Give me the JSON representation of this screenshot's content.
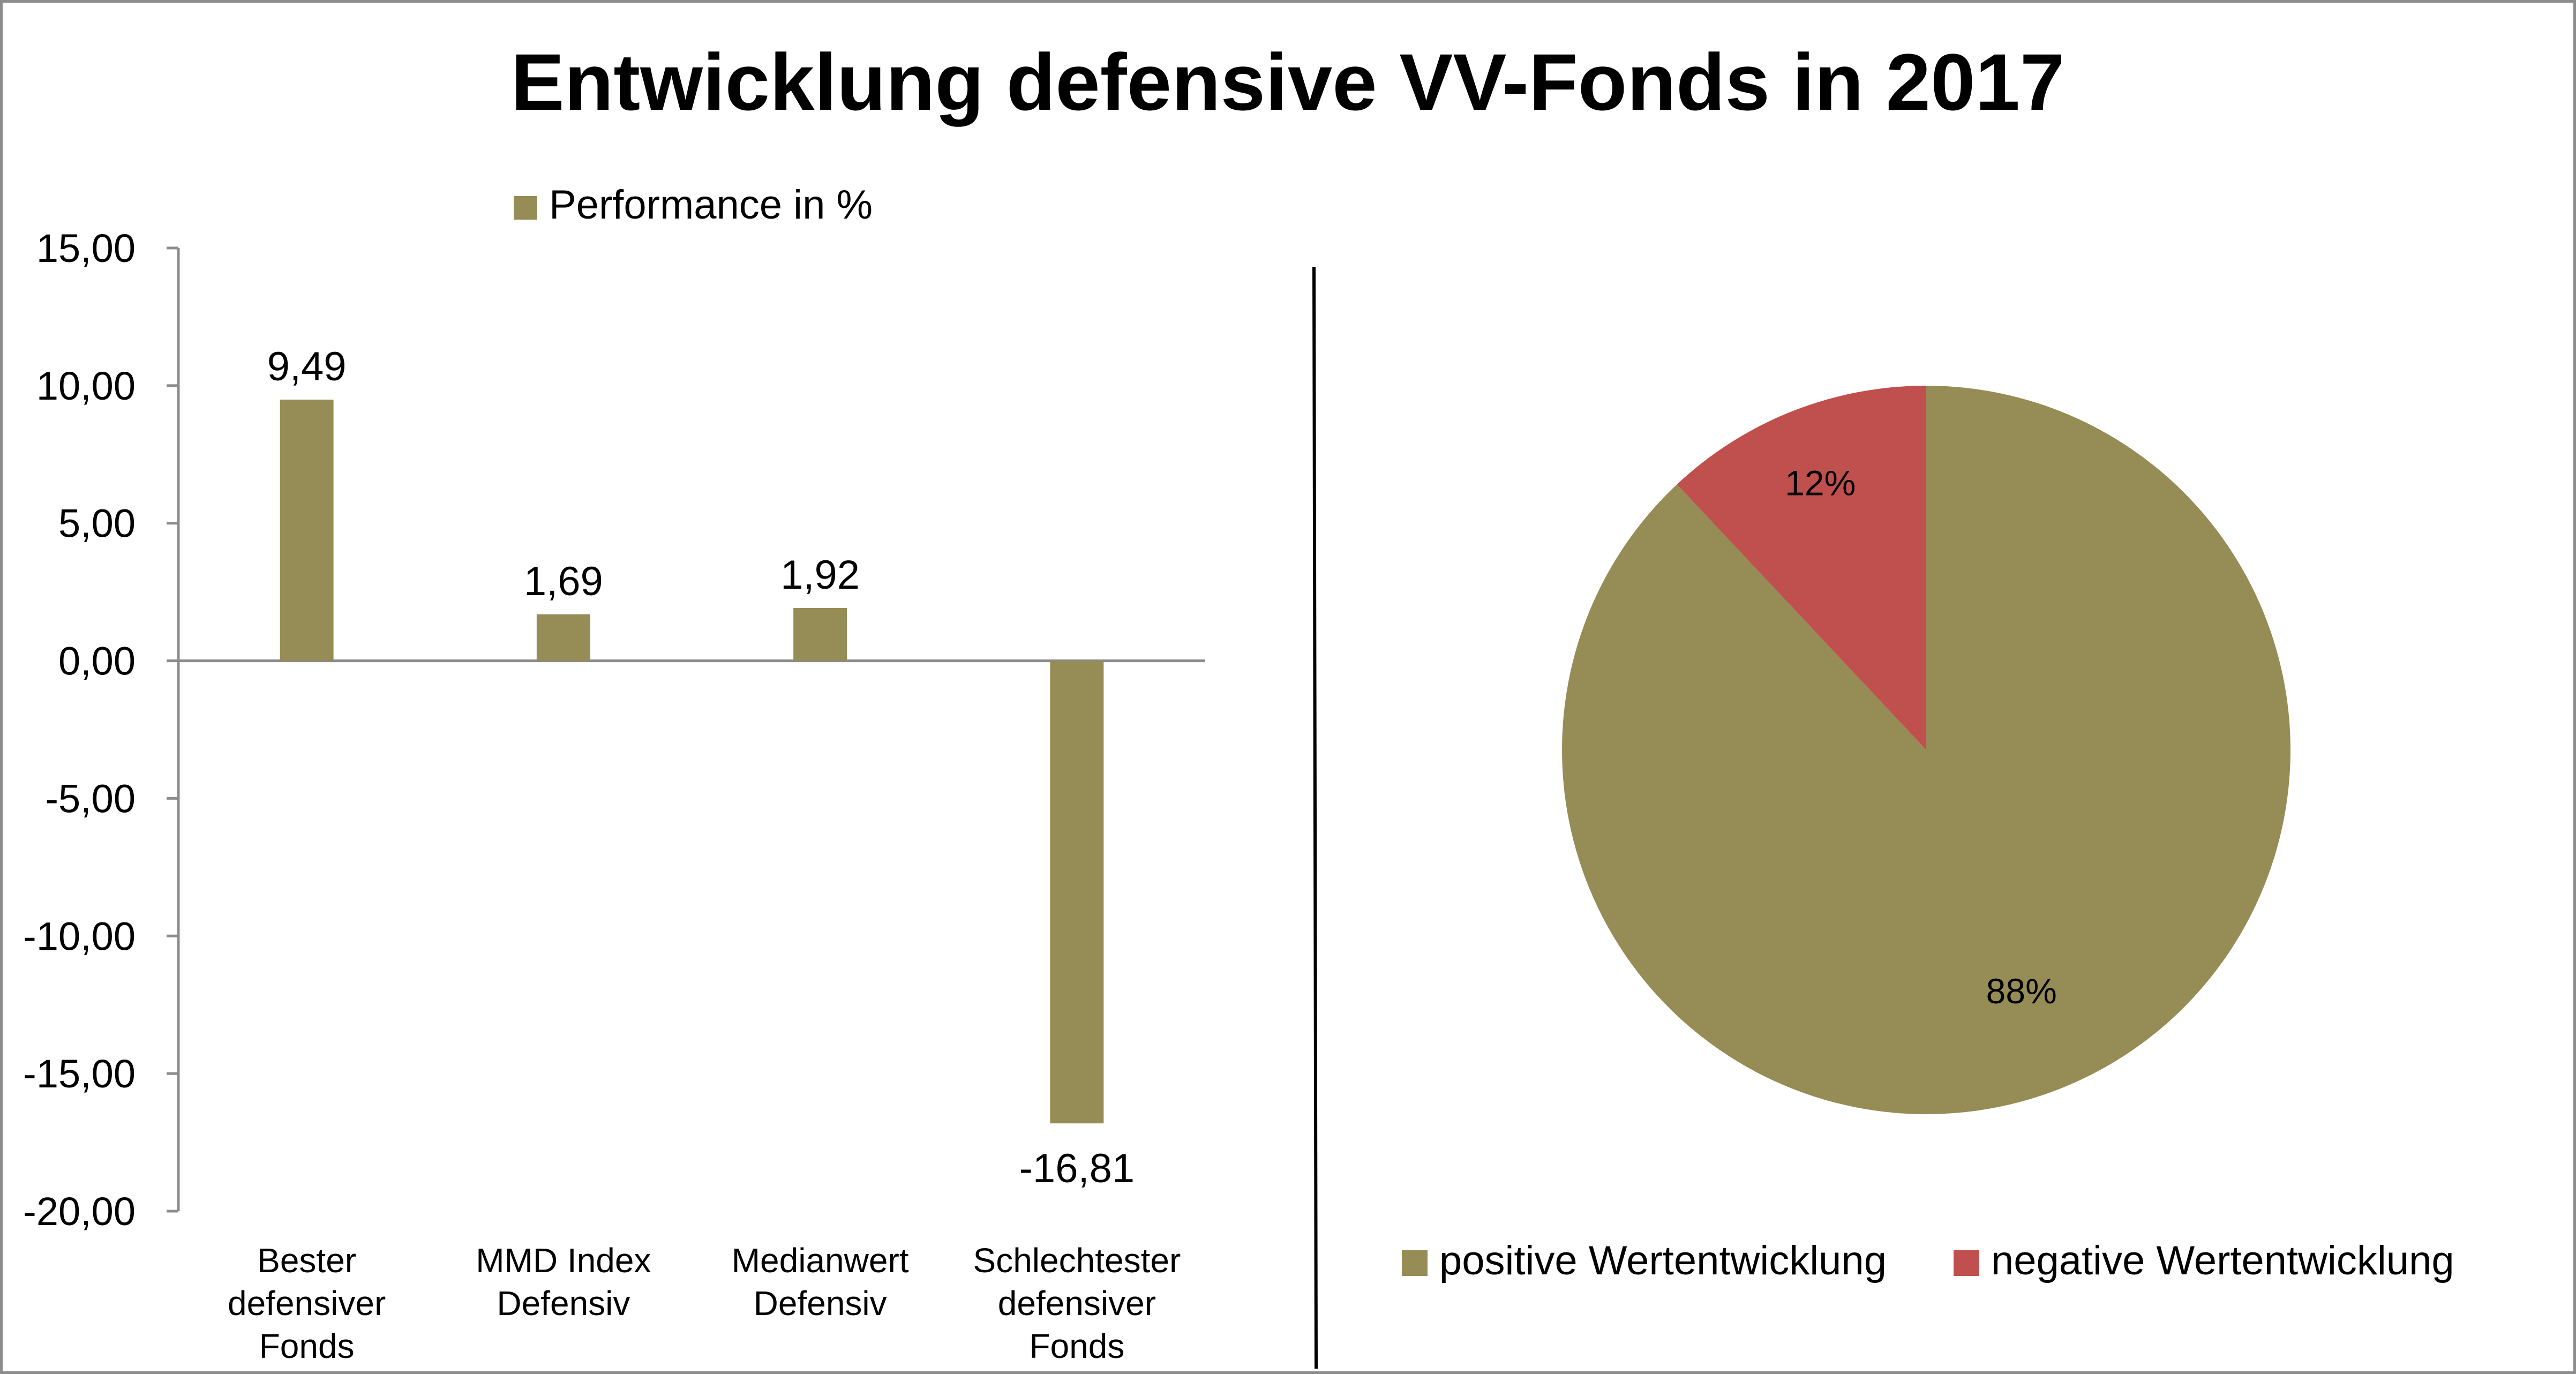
{
  "title": "Entwicklung defensive VV-Fonds in 2017",
  "colors": {
    "bar": "#968c55",
    "positive": "#968c55",
    "negative": "#c0504d",
    "axis": "#8c8c8c",
    "divider": "#000000"
  },
  "chart_data": [
    {
      "type": "bar",
      "categories": [
        [
          "Bester",
          "defensiver",
          "Fonds"
        ],
        [
          "MMD Index",
          "Defensiv"
        ],
        [
          "Medianwert",
          "Defensiv"
        ],
        [
          "Schlechtester",
          "defensiver",
          "Fonds"
        ]
      ],
      "series": [
        {
          "name": "Performance in %",
          "values": [
            9.49,
            1.69,
            1.92,
            -16.81
          ],
          "data_labels": [
            "9,49",
            "1,69",
            "1,92",
            "-16,81"
          ]
        }
      ],
      "ylim": [
        -20,
        15
      ],
      "yticks": [
        15,
        10,
        5,
        0,
        -5,
        -10,
        -15,
        -20
      ],
      "ytick_labels": [
        "15,00",
        "10,00",
        "5,00",
        "0,00",
        "-5,00",
        "-10,00",
        "-15,00",
        "-20,00"
      ],
      "legend": "top",
      "grid": false
    },
    {
      "type": "pie",
      "slices": [
        {
          "name": "positive Wertentwicklung",
          "value": 88,
          "label": "88%"
        },
        {
          "name": "negative Wertentwicklung",
          "value": 12,
          "label": "12%"
        }
      ],
      "legend": "bottom"
    }
  ]
}
